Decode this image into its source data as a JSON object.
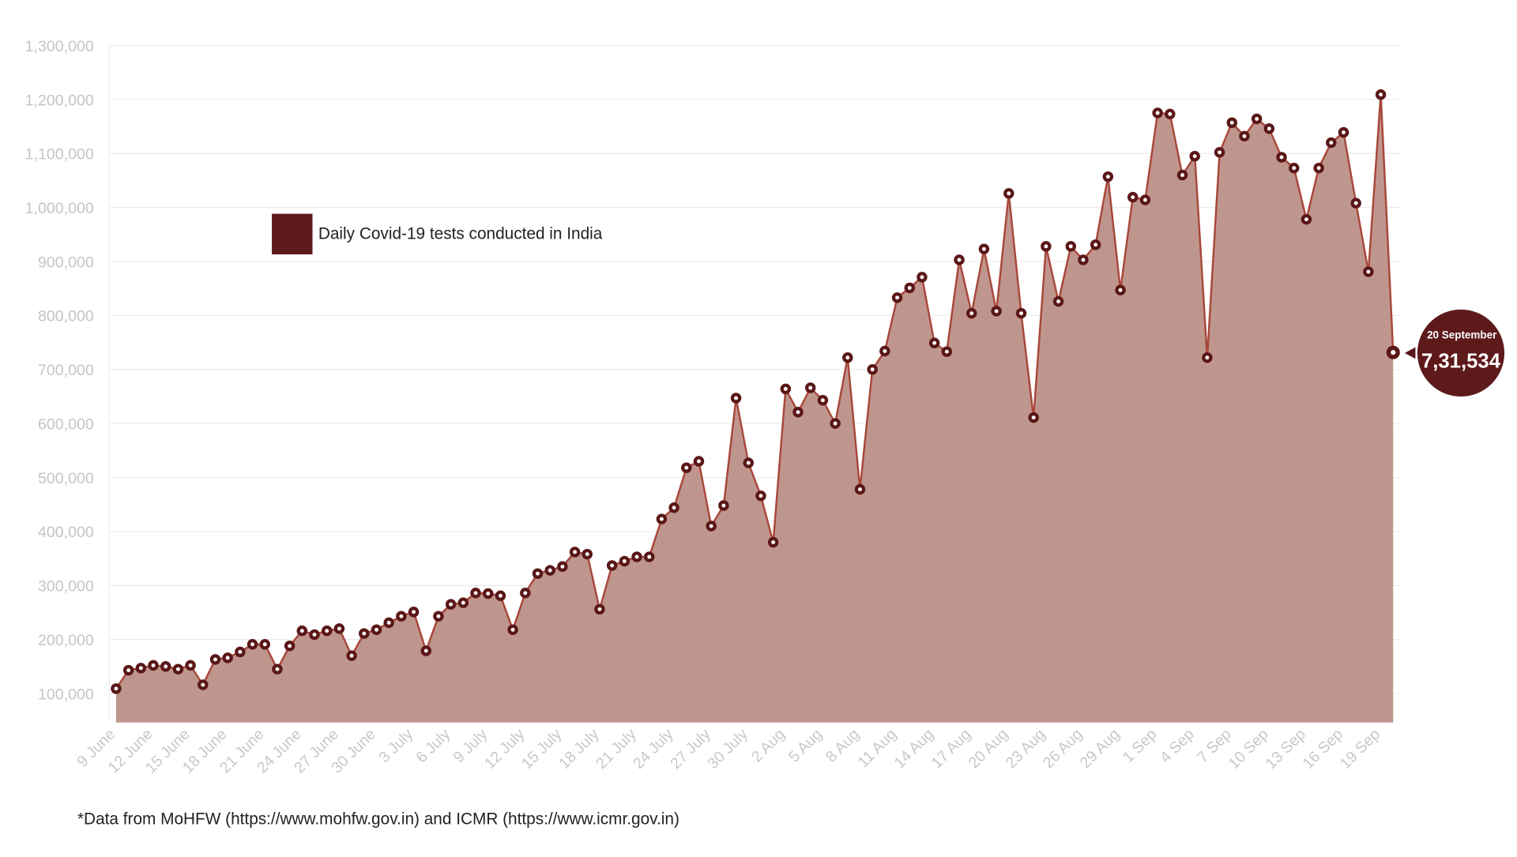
{
  "chart_data": {
    "type": "area",
    "title": "",
    "legend": {
      "label": "Daily Covid-19 tests conducted in India",
      "placement": "top-left"
    },
    "xlabel": "",
    "ylabel": "",
    "ylim": [
      46000,
      1300000
    ],
    "yticks": [
      100000,
      200000,
      300000,
      400000,
      500000,
      600000,
      700000,
      800000,
      900000,
      1000000,
      1100000,
      1200000,
      1300000
    ],
    "ytick_labels": [
      "100,000",
      "200,000",
      "300,000",
      "400,000",
      "500,000",
      "600,000",
      "700,000",
      "800,000",
      "900,000",
      "1,000,000",
      "1,100,000",
      "1,200,000",
      "1,300,000"
    ],
    "start_date": "9 June",
    "end_date": "20 September",
    "xtick_labels": [
      "9 June",
      "12 June",
      "15 June",
      "18 June",
      "21 June",
      "24 June",
      "27 June",
      "30 June",
      "3 July",
      "6 July",
      "9 July",
      "12 July",
      "15 July",
      "18 July",
      "21 July",
      "24 July",
      "27 July",
      "30 July",
      "2 Aug",
      "5 Aug",
      "8 Aug",
      "11 Aug",
      "14 Aug",
      "17 Aug",
      "20 Aug",
      "23 Aug",
      "26 Aug",
      "29 Aug",
      "1 Sep",
      "4 Sep",
      "7 Sep",
      "10 Sep",
      "13 Sep",
      "16 Sep",
      "19 Sep"
    ],
    "xtick_every": 3,
    "values": [
      109000,
      143000,
      147000,
      152000,
      150000,
      145000,
      152000,
      116000,
      163000,
      166000,
      177000,
      191000,
      191000,
      145000,
      188000,
      216000,
      209000,
      216000,
      220000,
      170000,
      211000,
      218000,
      231000,
      243000,
      251000,
      179000,
      243000,
      265000,
      268000,
      286000,
      285000,
      281000,
      218000,
      286000,
      322000,
      328000,
      335000,
      362000,
      358000,
      256000,
      337000,
      345000,
      353000,
      353000,
      423000,
      444000,
      518000,
      530000,
      410000,
      448000,
      647000,
      527000,
      466000,
      380000,
      664000,
      621000,
      666000,
      643000,
      600000,
      722000,
      478000,
      700000,
      734000,
      833000,
      851000,
      871000,
      749000,
      733000,
      903000,
      804000,
      923000,
      808000,
      1026000,
      804000,
      611000,
      928000,
      826000,
      928000,
      903000,
      931000,
      1057000,
      847000,
      1019000,
      1014000,
      1175000,
      1173000,
      1060000,
      1095000,
      722000,
      1102000,
      1157000,
      1132000,
      1164000,
      1146000,
      1093000,
      1073000,
      978000,
      1073000,
      1120000,
      1139000,
      1008000,
      881000,
      1209000,
      731534
    ],
    "grid": true,
    "colors": {
      "fill": "#bf968e",
      "line": "#a8473a",
      "marker": "#5a1717",
      "callout": "#5e1a1a",
      "legend": "#5e1a1a"
    },
    "callout": {
      "date": "20 September",
      "value": "7,31,534"
    }
  },
  "footnote": "*Data from MoHFW (https://www.mohfw.gov.in) and ICMR (https://www.icmr.gov.in)"
}
